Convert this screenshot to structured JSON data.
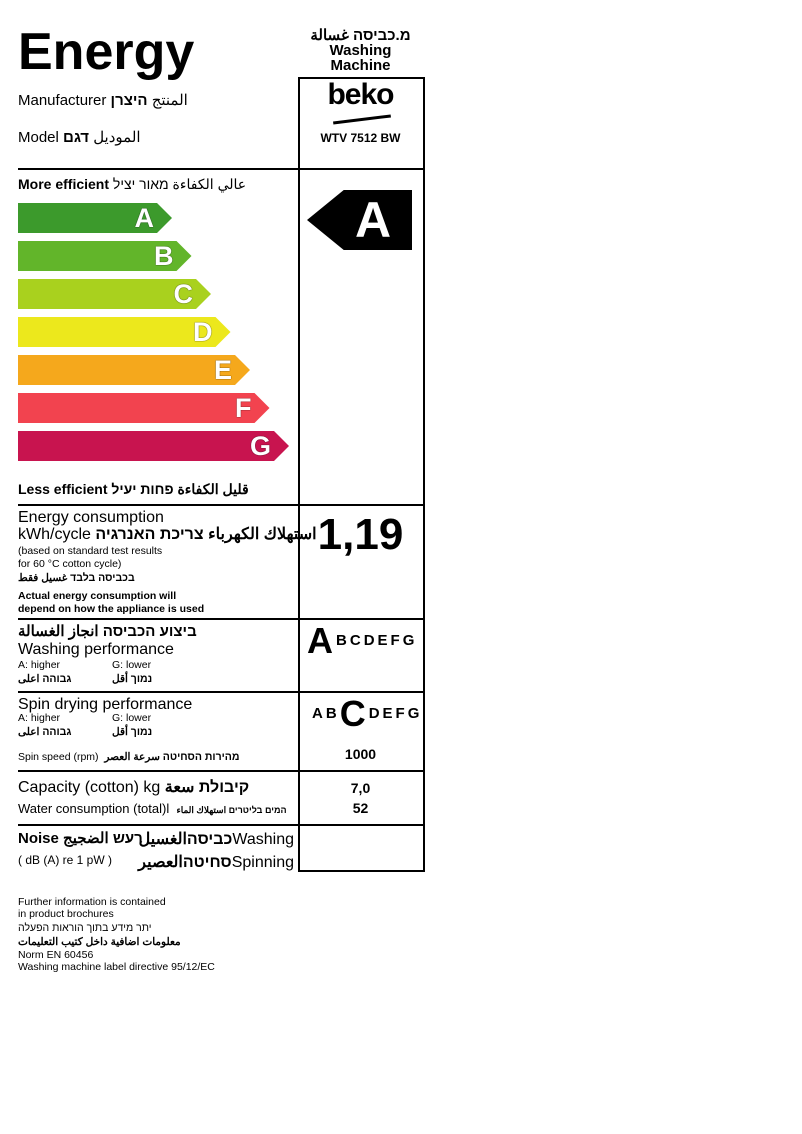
{
  "header": {
    "title": "Energy",
    "appliance_he_ar": "מ.כביסה غسالة",
    "appliance_line1": "Washing",
    "appliance_line2": "Machine",
    "manufacturer_label": "Manufacturer",
    "manufacturer_label_ar": "المنتج",
    "manufacturer_label_he": "היצרן",
    "model_label": "Model",
    "model_label_ar": "الموديل",
    "model_label_he": "דגם",
    "brand": "beko",
    "model": "WTV 7512 BW"
  },
  "scale": {
    "more_efficient": "More efficient",
    "more_efficient_ar": "عالي الكفاءة",
    "more_efficient_he": "מאור יציל",
    "less_efficient": "Less efficient",
    "less_efficient_ar": "قليل الكفاءة",
    "less_efficient_he": "פחות יעיל",
    "classes": [
      {
        "letter": "A",
        "color": "#3c9a2c"
      },
      {
        "letter": "B",
        "color": "#62b52a"
      },
      {
        "letter": "C",
        "color": "#a9d11e"
      },
      {
        "letter": "D",
        "color": "#ece81c"
      },
      {
        "letter": "E",
        "color": "#f5a81c"
      },
      {
        "letter": "F",
        "color": "#f2434f"
      },
      {
        "letter": "G",
        "color": "#c8144f"
      }
    ],
    "rating": "A"
  },
  "energy": {
    "title": "Energy consumption",
    "unit": "kWh/cycle",
    "label_ar": "استهلاك الكهرباء",
    "label_he": "צריכת האנרגיה",
    "note1": "(based on standard test results",
    "note2": "for 60 °C cotton cycle)",
    "note_he_ar": "בכביסה בלבד غسيل فقط",
    "bold1": "Actual energy consumption will",
    "bold2": "depend on how the appliance is used",
    "value": "1,19"
  },
  "washing": {
    "title_he_ar": "ביצוע הכביסה انجاز الغسالة",
    "title": "Washing performance",
    "higher": "A: higher",
    "lower": "G: lower",
    "higher_he_ar": "גבוהה  اعلى",
    "lower_he_ar": "נמוך  أقل",
    "rating": "A",
    "letters": [
      "A",
      "B",
      "C",
      "D",
      "E",
      "F",
      "G"
    ]
  },
  "spin": {
    "title": "Spin drying performance",
    "higher": "A: higher",
    "lower": "G: lower",
    "higher_he_ar": "גבוהה  اعلى",
    "lower_he_ar": "נמוך  أقل",
    "rating": "C",
    "letters": [
      "A",
      "B",
      "C",
      "D",
      "E",
      "F",
      "G"
    ],
    "speed_label": "Spin speed (rpm)",
    "speed_label_he_ar": "מהירות הסחיטה سرعة العصر",
    "speed": "1000"
  },
  "capacity": {
    "label": "Capacity (cotton) kg",
    "label_he_ar": "קיבולת سعة",
    "value": "7,0",
    "water_label": "Water consumption (total)",
    "water_unit": "l",
    "water_label_he_ar": "המים בליטרים استهلاك الماء",
    "water_value": "52"
  },
  "noise": {
    "label": "Noise",
    "label_he_ar": "רעש الضجيج",
    "washing": "Washing",
    "washing_he_ar": "כביסהالغسيل",
    "unit": "( dB (A) re 1 pW )",
    "spinning": "Spinning",
    "spinning_he_ar": "סחיטהالعصير"
  },
  "footer": [
    "Further information is contained",
    "in product brochures",
    "יתר מידע בתוך הוראות הפעלה",
    "معلومات اضافية داخل كتيب التعليمات",
    "Norm EN 60456",
    "Washing machine label directive 95/12/EC"
  ]
}
